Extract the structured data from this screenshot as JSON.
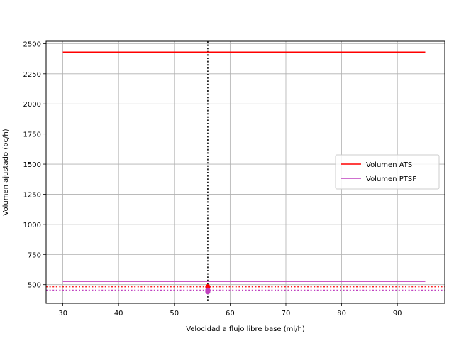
{
  "chart_data": {
    "type": "line",
    "title": "",
    "xlabel": "Velocidad a flujo libre base (mi/h)",
    "ylabel": "Volumen ajustado (pc/h)",
    "xlim": [
      27,
      98.5
    ],
    "ylim": [
      345,
      2520
    ],
    "xticks": [
      30,
      40,
      50,
      60,
      70,
      80,
      90
    ],
    "yticks": [
      500,
      750,
      1000,
      1250,
      1500,
      1750,
      2000,
      2250,
      2500
    ],
    "grid": true,
    "legend": {
      "placement": "center-right"
    },
    "series": [
      {
        "name": "Volumen ATS",
        "color": "#ff0000",
        "x": [
          30,
          95
        ],
        "y": [
          2430,
          2430
        ]
      },
      {
        "name": "Volumen PTSF",
        "color": "#bf40bf",
        "x": [
          30,
          95
        ],
        "y": [
          527,
          527
        ]
      }
    ],
    "reference_lines": [
      {
        "orientation": "vertical",
        "value": 56,
        "color": "#000000",
        "style": "dotted"
      },
      {
        "orientation": "horizontal",
        "value": 482,
        "color": "#ff0000",
        "style": "dotted"
      },
      {
        "orientation": "horizontal",
        "value": 455,
        "color": "#bf40bf",
        "style": "dotted"
      }
    ],
    "markers": [
      {
        "x": 56,
        "y": 482,
        "color": "#ff0000"
      },
      {
        "x": 56,
        "y": 455,
        "color": "#bf40bf"
      },
      {
        "x": 56,
        "y": 442,
        "color": "#bf40bf"
      }
    ]
  }
}
